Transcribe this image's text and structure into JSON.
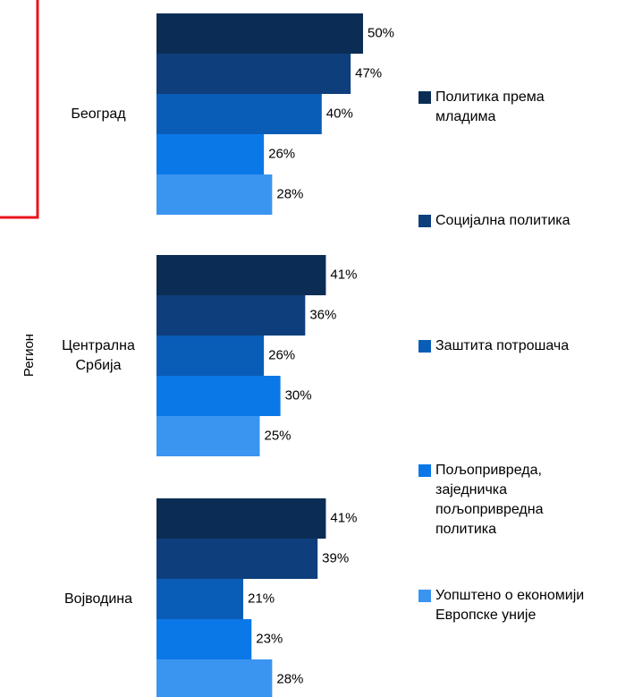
{
  "chart_data": {
    "type": "bar",
    "orientation": "horizontal",
    "y_axis_label": "Регион",
    "categories": [
      "Београд",
      "Централна Србија",
      "Војводина"
    ],
    "series": [
      {
        "name": "Политика према младима",
        "color": "#0b2d55",
        "values": [
          50,
          41,
          41
        ],
        "value_labels": [
          "50%",
          "41%",
          "41%"
        ]
      },
      {
        "name": "Социјална политика",
        "color": "#0e3f7c",
        "values": [
          47,
          36,
          39
        ],
        "value_labels": [
          "47%",
          "36%",
          "39%"
        ]
      },
      {
        "name": "Заштита потрошача",
        "color": "#0a5db6",
        "values": [
          40,
          26,
          21
        ],
        "value_labels": [
          "40%",
          "26%",
          "21%"
        ]
      },
      {
        "name": "Пољопривреда, заједничка пољопривредна политика",
        "color": "#0b78e8",
        "values": [
          26,
          30,
          23
        ],
        "value_labels": [
          "26%",
          "30%",
          "23%"
        ]
      },
      {
        "name": "Уопштено о економији Европске уније",
        "color": "#3a95f0",
        "values": [
          28,
          25,
          28
        ],
        "value_labels": [
          "28%",
          "25%",
          "28%"
        ]
      }
    ],
    "xlim": [
      0,
      100
    ]
  }
}
